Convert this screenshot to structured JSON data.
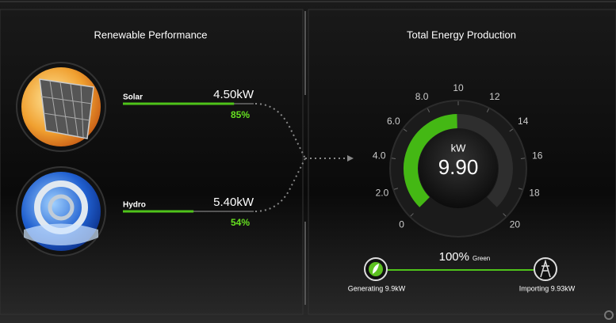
{
  "left_panel": {
    "title": "Renewable Performance",
    "sources": [
      {
        "name": "Solar",
        "power": "4.50kW",
        "percent": 85,
        "percent_label": "85%"
      },
      {
        "name": "Hydro",
        "power": "5.40kW",
        "percent": 54,
        "percent_label": "54%"
      }
    ]
  },
  "right_panel": {
    "title": "Total Energy Production",
    "gauge": {
      "unit": "kW",
      "value": 9.9,
      "value_label": "9.90",
      "range": [
        0,
        20
      ],
      "ticks": [
        0,
        {
          "value": 2,
          "label": "2.0"
        },
        {
          "value": 4,
          "label": "4.0"
        },
        {
          "value": 6,
          "label": "6.0"
        },
        {
          "value": 8,
          "label": "8.0"
        },
        10,
        12,
        14,
        16,
        18,
        20
      ]
    },
    "green": {
      "percent": 100,
      "percent_label": "100%",
      "label": "Green"
    },
    "generating": "Generating 9.9kW",
    "importing": "Importing 9.93kW"
  }
}
